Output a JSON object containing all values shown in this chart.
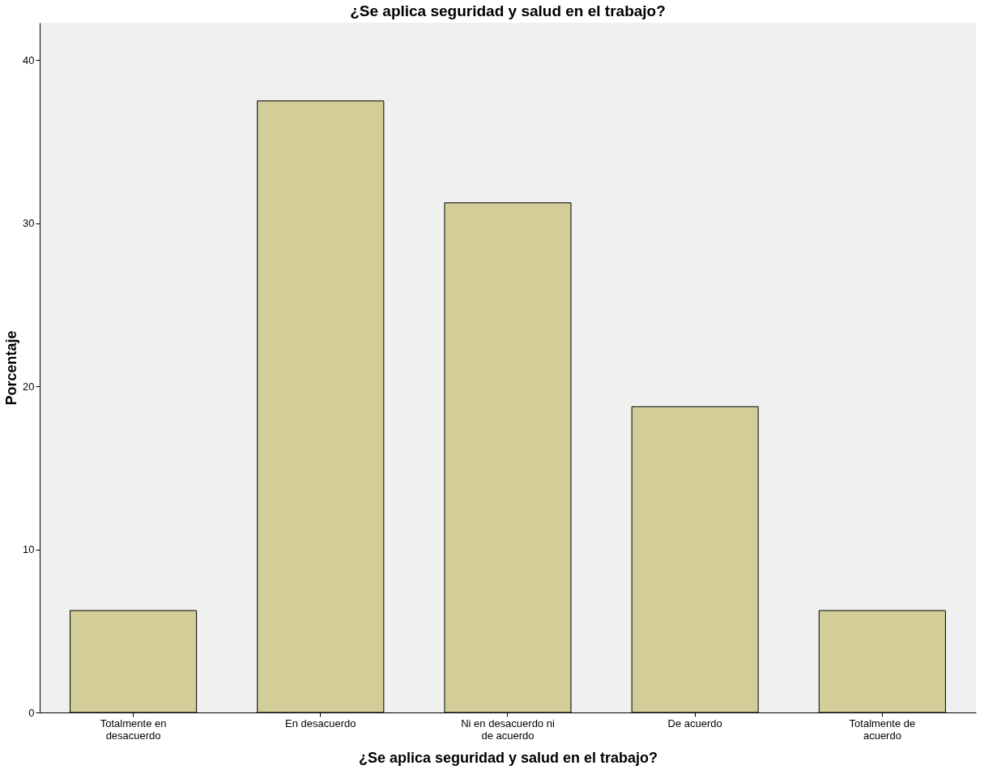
{
  "chart_data": {
    "type": "bar",
    "title": "¿Se aplica seguridad y salud en el trabajo?",
    "xlabel": "¿Se aplica seguridad y salud en el trabajo?",
    "ylabel": "Porcentaje",
    "categories": [
      "Totalmente en desacuerdo",
      "En desacuerdo",
      "Ni en desacuerdo ni de acuerdo",
      "De acuerdo",
      "Totalmente de acuerdo"
    ],
    "values": [
      6.25,
      37.5,
      31.25,
      18.75,
      6.25
    ],
    "color": "#d3ce97",
    "ylim": [
      0,
      42.3
    ],
    "yticks": [
      0,
      10,
      20,
      30,
      40
    ],
    "grid": false
  }
}
